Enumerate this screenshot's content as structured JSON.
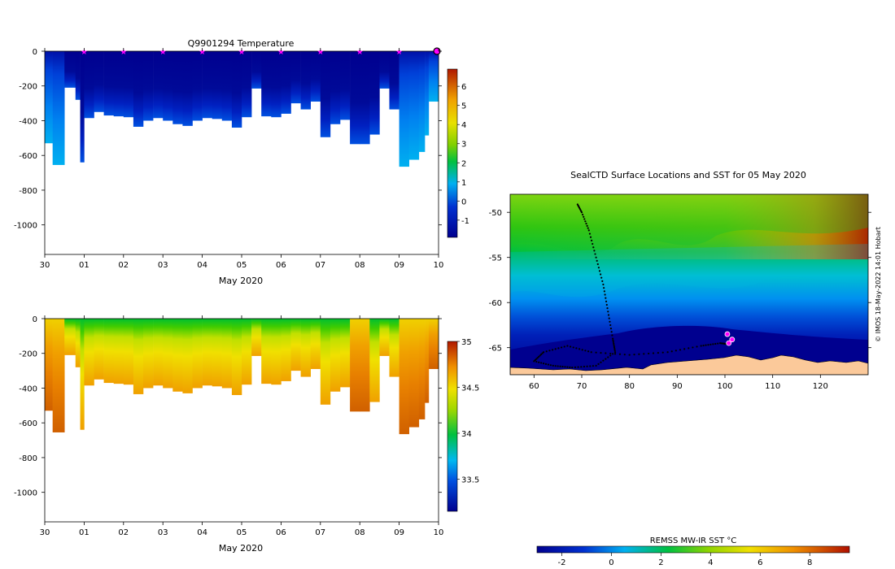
{
  "chart_data": [
    {
      "type": "heatmap",
      "id": "temperature-section",
      "title": "Q9901294  Temperature",
      "xlabel": "May 2020",
      "ylabel": "",
      "xlim": [
        0,
        10
      ],
      "ylim": [
        -1170,
        0
      ],
      "x_tick_labels": [
        "30",
        "01",
        "02",
        "03",
        "04",
        "05",
        "06",
        "07",
        "08",
        "09",
        "10"
      ],
      "y_ticks": [
        0,
        -200,
        -400,
        -600,
        -800,
        -1000
      ],
      "marker_days": [
        1,
        2,
        3,
        4,
        5,
        6,
        7,
        8,
        9
      ],
      "current_day": 10,
      "colorbar": {
        "min": -1.9,
        "max": 6.9,
        "ticks": [
          -1,
          0,
          1,
          2,
          3,
          4,
          5,
          6
        ]
      },
      "color_note": "water near 0..-1 degC at surface, warming slightly at depth"
    },
    {
      "type": "heatmap",
      "id": "salinity-section",
      "title": "",
      "xlabel": "May 2020",
      "ylabel": "",
      "xlim": [
        0,
        10
      ],
      "ylim": [
        -1170,
        0
      ],
      "x_tick_labels": [
        "30",
        "01",
        "02",
        "03",
        "04",
        "05",
        "06",
        "07",
        "08",
        "09",
        "10"
      ],
      "y_ticks": [
        0,
        -200,
        -400,
        -600,
        -800,
        -1000
      ],
      "colorbar": {
        "min": 33.15,
        "max": 35.0,
        "ticks": [
          33.5,
          34,
          34.5,
          35
        ]
      }
    },
    {
      "type": "map",
      "id": "sst-map",
      "title": "SealCTD Surface Locations and SST for 05 May 2020",
      "xlim": [
        55,
        130
      ],
      "ylim": [
        -68,
        -48
      ],
      "x_ticks": [
        60,
        70,
        80,
        90,
        100,
        110,
        120
      ],
      "y_ticks": [
        -50,
        -55,
        -60,
        -65
      ],
      "track": [
        [
          69,
          -49
        ],
        [
          70,
          -50
        ],
        [
          71.5,
          -52
        ],
        [
          73,
          -55
        ],
        [
          74.5,
          -58
        ],
        [
          75.5,
          -61
        ],
        [
          76.5,
          -64
        ],
        [
          77,
          -65.5
        ],
        [
          73,
          -67
        ],
        [
          68,
          -67.2
        ],
        [
          64,
          -67
        ],
        [
          60,
          -66.5
        ],
        [
          62,
          -65.5
        ],
        [
          67,
          -64.8
        ],
        [
          72,
          -65.5
        ],
        [
          80,
          -65.8
        ],
        [
          88,
          -65.5
        ],
        [
          95,
          -64.8
        ],
        [
          99,
          -64.5
        ],
        [
          100.5,
          -64.6
        ]
      ],
      "current_positions": [
        [
          100.5,
          -63.5
        ],
        [
          100.8,
          -64.5
        ],
        [
          101.5,
          -64.1
        ]
      ],
      "credit": "© IMOS 18-May-2022 14:01 Hobart"
    },
    {
      "type": "colorbar",
      "id": "sst-colorbar",
      "title": "REMSS MW-IR SST °C",
      "min": -3,
      "max": 9.6,
      "ticks": [
        -2,
        0,
        2,
        4,
        6,
        8
      ]
    }
  ],
  "profiles": {
    "days": [
      0.0,
      0.2,
      0.5,
      0.78,
      0.9,
      1.0,
      1.25,
      1.5,
      1.75,
      2.0,
      2.25,
      2.5,
      2.75,
      3.0,
      3.25,
      3.5,
      3.75,
      4.0,
      4.25,
      4.5,
      4.75,
      5.0,
      5.25,
      5.5,
      5.75,
      6.0,
      6.25,
      6.5,
      6.75,
      7.0,
      7.25,
      7.5,
      7.75,
      8.0,
      8.25,
      8.5,
      8.75,
      9.0,
      9.25,
      9.5,
      9.65,
      9.75,
      10.0
    ],
    "depth": [
      530,
      655,
      210,
      280,
      640,
      385,
      350,
      370,
      375,
      380,
      435,
      400,
      385,
      400,
      420,
      430,
      400,
      385,
      390,
      400,
      440,
      380,
      215,
      375,
      380,
      360,
      300,
      335,
      290,
      495,
      420,
      395,
      535,
      535,
      480,
      215,
      335,
      665,
      625,
      580,
      485,
      290,
      295
    ]
  }
}
